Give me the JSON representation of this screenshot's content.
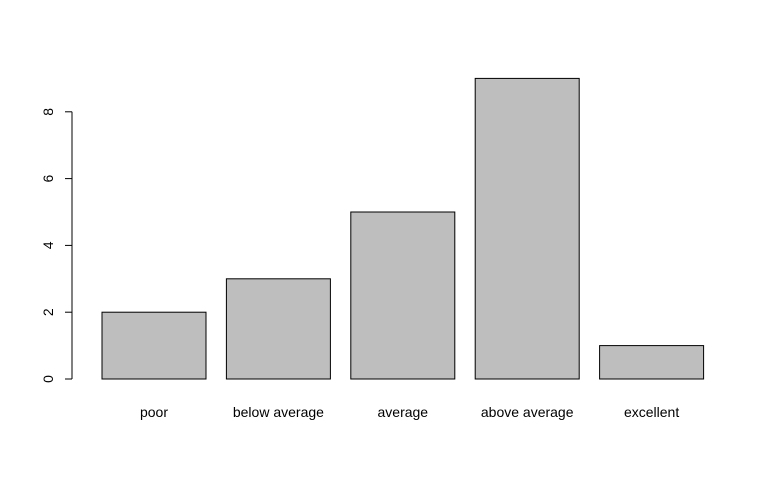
{
  "chart_data": {
    "type": "bar",
    "categories": [
      "poor",
      "below average",
      "average",
      "above average",
      "excellent"
    ],
    "values": [
      2,
      3,
      5,
      9,
      1
    ],
    "ylim": [
      0,
      9
    ],
    "yticks": [
      "0",
      "2",
      "4",
      "6",
      "8"
    ],
    "grid": false,
    "title": "",
    "xlabel": "",
    "ylabel": "",
    "colors": {
      "bar_fill": "#bebebe",
      "bar_stroke": "#000000",
      "axis": "#000000"
    }
  }
}
